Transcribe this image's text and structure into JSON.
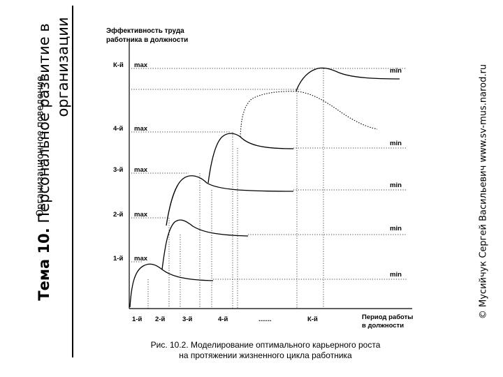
{
  "sidebar": {
    "subtitle": "Организационное поведение",
    "title_prefix": "Тема 10.",
    "title_line1": "Персональное развитие в",
    "title_line2": "организации"
  },
  "copyright": "© Мусийчук Сергей Васильевич www.sv-mus.narod.ru",
  "diagram": {
    "y_axis_label_line1": "Эффективность труда",
    "y_axis_label_line2": "работника в должности",
    "x_axis_label_line1": "Период работы",
    "x_axis_label_line2": "в должности",
    "x_ticks": [
      "1-й",
      "2-й",
      "3-й",
      "4-й",
      ".......",
      "К-й"
    ],
    "levels": [
      {
        "position": "К-й",
        "max_label": "max",
        "min_label": "min"
      },
      {
        "position": "4-й",
        "max_label": "max",
        "min_label": "min"
      },
      {
        "position": "3-й",
        "max_label": "max",
        "min_label": "min"
      },
      {
        "position": "2-й",
        "max_label": "max",
        "min_label": "min"
      },
      {
        "position": "1-й",
        "max_label": "max",
        "min_label": "min"
      }
    ]
  },
  "caption": {
    "line1": "Рис. 10.2. Моделирование оптимального карьерного роста",
    "line2": "на протяжении жизненного цикла работника"
  }
}
